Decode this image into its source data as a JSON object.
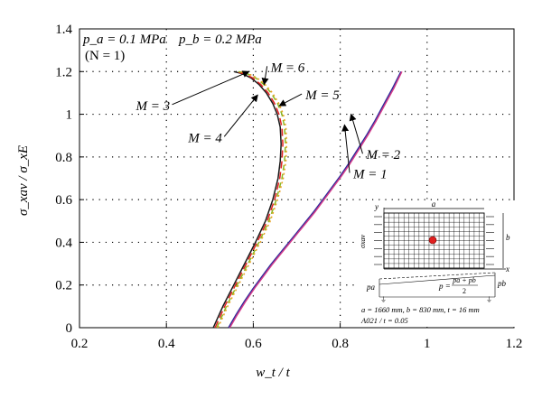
{
  "chart_data": {
    "type": "line",
    "xlabel": "w_t / t",
    "ylabel": "σ_xav / σ_xE",
    "xlim": [
      0.2,
      1.2
    ],
    "ylim": [
      0,
      1.4
    ],
    "xticks": [
      "0.2",
      "0.4",
      "0.6",
      "0.8",
      "1",
      "1.2"
    ],
    "yticks": [
      "0",
      "0.2",
      "0.4",
      "0.6",
      "0.8",
      "1",
      "1.2",
      "1.4"
    ],
    "grid": true,
    "header_lines": {
      "pressure": {
        "pa": "p_a = 0.1 MPa",
        "pb": "p_b = 0.2 MPa"
      },
      "n_value": "(N = 1)"
    },
    "series": [
      {
        "name": "M = 1",
        "color": "#2a2a9a",
        "dash": "none",
        "x": [
          0.543,
          0.56,
          0.58,
          0.6,
          0.62,
          0.64,
          0.66,
          0.68,
          0.7,
          0.72,
          0.74,
          0.76,
          0.78,
          0.8,
          0.82,
          0.84,
          0.86,
          0.88,
          0.9,
          0.92,
          0.94
        ],
        "y": [
          0.0,
          0.06,
          0.125,
          0.185,
          0.24,
          0.295,
          0.345,
          0.395,
          0.445,
          0.495,
          0.545,
          0.6,
          0.655,
          0.71,
          0.77,
          0.835,
          0.9,
          0.97,
          1.045,
          1.12,
          1.2
        ]
      },
      {
        "name": "M = 2",
        "color": "#d43c8a",
        "dash": "none",
        "x": [
          0.546,
          0.563,
          0.583,
          0.603,
          0.623,
          0.643,
          0.663,
          0.683,
          0.703,
          0.723,
          0.743,
          0.763,
          0.783,
          0.803,
          0.823,
          0.843,
          0.863,
          0.883,
          0.903,
          0.923,
          0.942
        ],
        "y": [
          0.0,
          0.06,
          0.125,
          0.185,
          0.24,
          0.295,
          0.345,
          0.395,
          0.445,
          0.495,
          0.545,
          0.6,
          0.655,
          0.71,
          0.77,
          0.835,
          0.9,
          0.97,
          1.045,
          1.12,
          1.2
        ]
      },
      {
        "name": "M = 3",
        "color": "#1a1a1a",
        "dash": "none",
        "x": [
          0.508,
          0.53,
          0.555,
          0.58,
          0.605,
          0.628,
          0.645,
          0.657,
          0.662,
          0.664,
          0.662,
          0.655,
          0.645,
          0.63,
          0.613,
          0.595,
          0.575,
          0.555
        ],
        "y": [
          0.0,
          0.1,
          0.2,
          0.3,
          0.4,
          0.5,
          0.6,
          0.7,
          0.78,
          0.86,
          0.94,
          1.0,
          1.05,
          1.1,
          1.14,
          1.17,
          1.19,
          1.2
        ]
      },
      {
        "name": "M = 4",
        "color": "#e02020",
        "dash": "8 4",
        "x": [
          0.512,
          0.534,
          0.559,
          0.584,
          0.609,
          0.632,
          0.649,
          0.661,
          0.666,
          0.668,
          0.666,
          0.659,
          0.649,
          0.634,
          0.617,
          0.599,
          0.579,
          0.559
        ],
        "y": [
          0.0,
          0.1,
          0.2,
          0.3,
          0.4,
          0.5,
          0.6,
          0.7,
          0.78,
          0.86,
          0.94,
          1.0,
          1.05,
          1.1,
          1.14,
          1.17,
          1.19,
          1.2
        ]
      },
      {
        "name": "M = 5",
        "color": "#8ab820",
        "dash": "6 4",
        "x": [
          0.516,
          0.538,
          0.563,
          0.588,
          0.613,
          0.636,
          0.653,
          0.666,
          0.672,
          0.674,
          0.672,
          0.666,
          0.656,
          0.641,
          0.624,
          0.606,
          0.586,
          0.566
        ],
        "y": [
          0.0,
          0.1,
          0.2,
          0.3,
          0.4,
          0.5,
          0.6,
          0.7,
          0.78,
          0.86,
          0.94,
          1.0,
          1.05,
          1.1,
          1.14,
          1.17,
          1.19,
          1.2
        ]
      },
      {
        "name": "M = 6",
        "color": "#e8a020",
        "dash": "2 3",
        "x": [
          0.519,
          0.541,
          0.566,
          0.591,
          0.616,
          0.639,
          0.656,
          0.669,
          0.675,
          0.677,
          0.675,
          0.669,
          0.659,
          0.644,
          0.627,
          0.609,
          0.589,
          0.569
        ],
        "y": [
          0.0,
          0.1,
          0.2,
          0.3,
          0.4,
          0.5,
          0.6,
          0.7,
          0.78,
          0.86,
          0.94,
          1.0,
          1.05,
          1.1,
          1.14,
          1.17,
          1.19,
          1.2
        ]
      }
    ],
    "curve_labels": [
      {
        "text": "M = 3",
        "x": 0.33,
        "y": 1.02,
        "tip": [
          0.59,
          1.2
        ]
      },
      {
        "text": "M = 4",
        "x": 0.45,
        "y": 0.87,
        "tip": [
          0.61,
          1.09
        ]
      },
      {
        "text": "M = 6",
        "x": 0.64,
        "y": 1.2,
        "tip": [
          0.625,
          1.14
        ]
      },
      {
        "text": "M = 5",
        "x": 0.72,
        "y": 1.07,
        "tip": [
          0.66,
          1.04
        ]
      },
      {
        "text": "M = 2",
        "x": 0.86,
        "y": 0.79,
        "tip": [
          0.825,
          1.0
        ]
      },
      {
        "text": "M = 1",
        "x": 0.83,
        "y": 0.7,
        "tip": [
          0.81,
          0.95
        ]
      }
    ],
    "inset": {
      "a_label": "a",
      "b_label": "b",
      "x_label": "x",
      "y_label": "y",
      "sigma_label": "σxav",
      "pa_label": "pa",
      "pb_label": "pb",
      "p_eq": "p =",
      "p_num": "pa + pb",
      "p_den": "2",
      "dims": "a = 1660 mm,  b = 830 mm,  t = 16 mm",
      "amp": "A021 / t = 0.05"
    }
  }
}
